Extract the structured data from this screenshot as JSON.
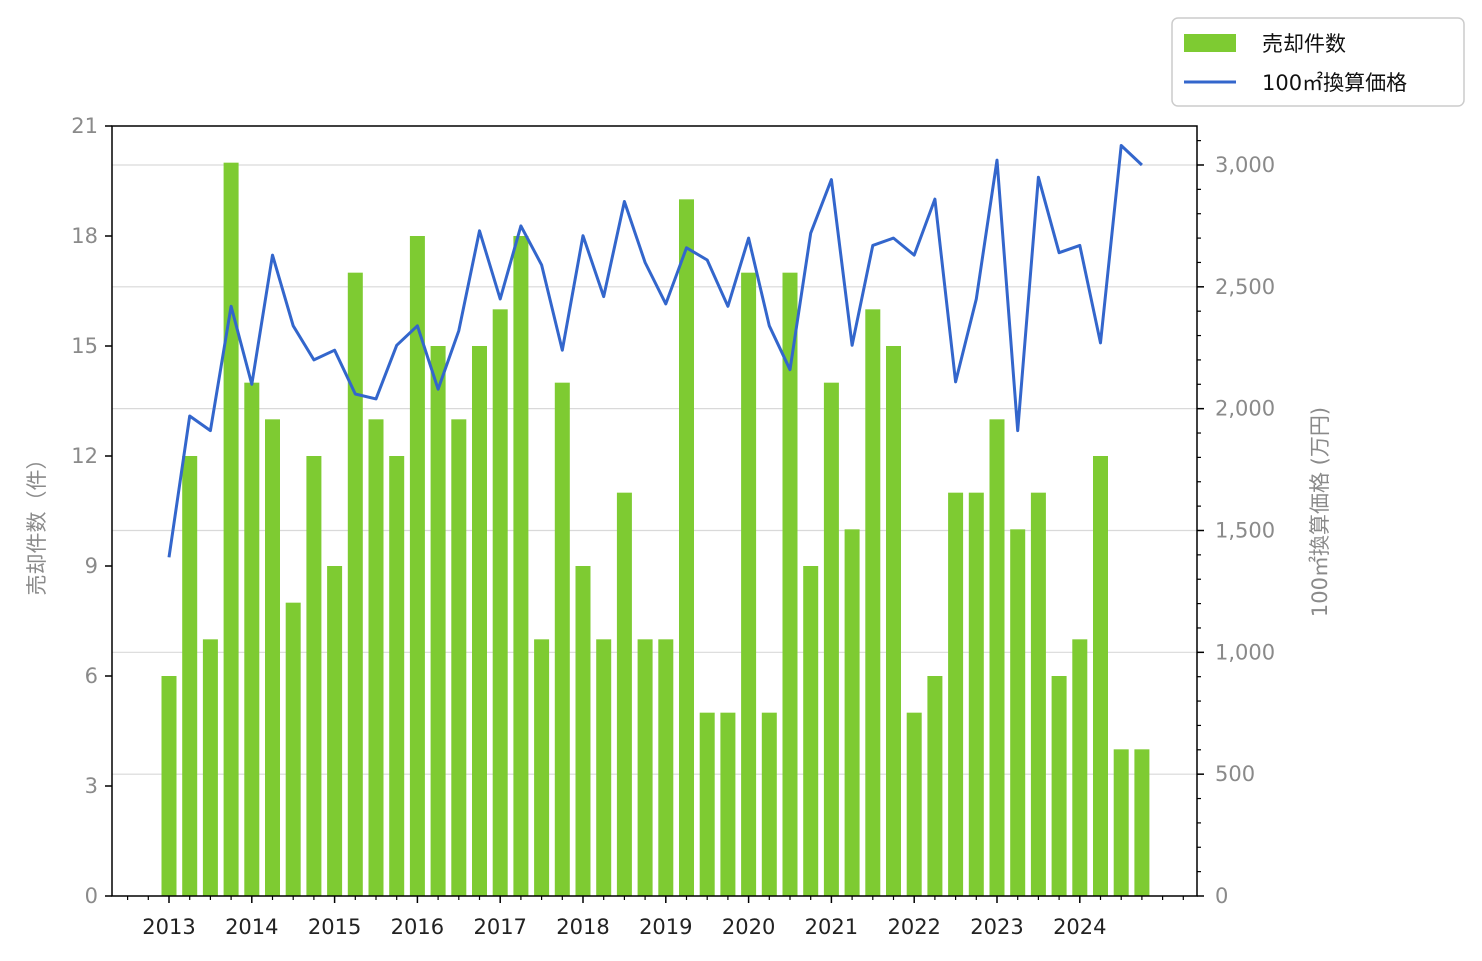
{
  "chart_data": {
    "type": "bar+line",
    "x_tick_labels": [
      "2013",
      "2014",
      "2015",
      "2016",
      "2017",
      "2018",
      "2019",
      "2020",
      "2021",
      "2022",
      "2023",
      "2024"
    ],
    "series": [
      {
        "name": "売却件数",
        "type": "bar",
        "axis": "left",
        "color": "#7ecb32",
        "values": [
          6,
          12,
          7,
          20,
          14,
          13,
          8,
          12,
          9,
          17,
          13,
          12,
          18,
          15,
          13,
          15,
          16,
          18,
          7,
          14,
          9,
          7,
          11,
          7,
          7,
          19,
          5,
          5,
          17,
          5,
          17,
          9,
          14,
          10,
          16,
          15,
          5,
          6,
          11,
          11,
          13,
          10,
          11,
          6,
          7,
          12,
          4,
          4
        ]
      },
      {
        "name": "100㎡換算価格",
        "type": "line",
        "axis": "right",
        "color": "#3366cc",
        "values": [
          1390,
          1970,
          1910,
          2420,
          2100,
          2630,
          2340,
          2200,
          2240,
          2060,
          2040,
          2260,
          2340,
          2080,
          2320,
          2730,
          2450,
          2750,
          2590,
          2240,
          2710,
          2460,
          2850,
          2600,
          2430,
          2660,
          2610,
          2420,
          2700,
          2340,
          2160,
          2720,
          2940,
          2260,
          2670,
          2700,
          2630,
          2860,
          2110,
          2450,
          3020,
          1910,
          2950,
          2640,
          2670,
          2270,
          3080,
          3000
        ]
      }
    ],
    "y_left": {
      "label": "売却件数（件）",
      "lim": [
        0,
        21
      ],
      "ticks": [
        0,
        3,
        6,
        9,
        12,
        15,
        18,
        21
      ],
      "tick_labels": [
        "0",
        "3",
        "6",
        "9",
        "12",
        "15",
        "18",
        "21"
      ]
    },
    "y_right": {
      "label": "100㎡換算価格 (万円)",
      "lim": [
        0,
        3160
      ],
      "ticks": [
        0,
        500,
        1000,
        1500,
        2000,
        2500,
        3000
      ],
      "tick_labels": [
        "0",
        "500",
        "1,000",
        "1,500",
        "2,000",
        "2,500",
        "3,000"
      ]
    },
    "grid": "horizontal-right-axis",
    "legend": {
      "placement": "top-right-outside",
      "entries": [
        "売却件数",
        "100㎡換算価格"
      ]
    }
  }
}
